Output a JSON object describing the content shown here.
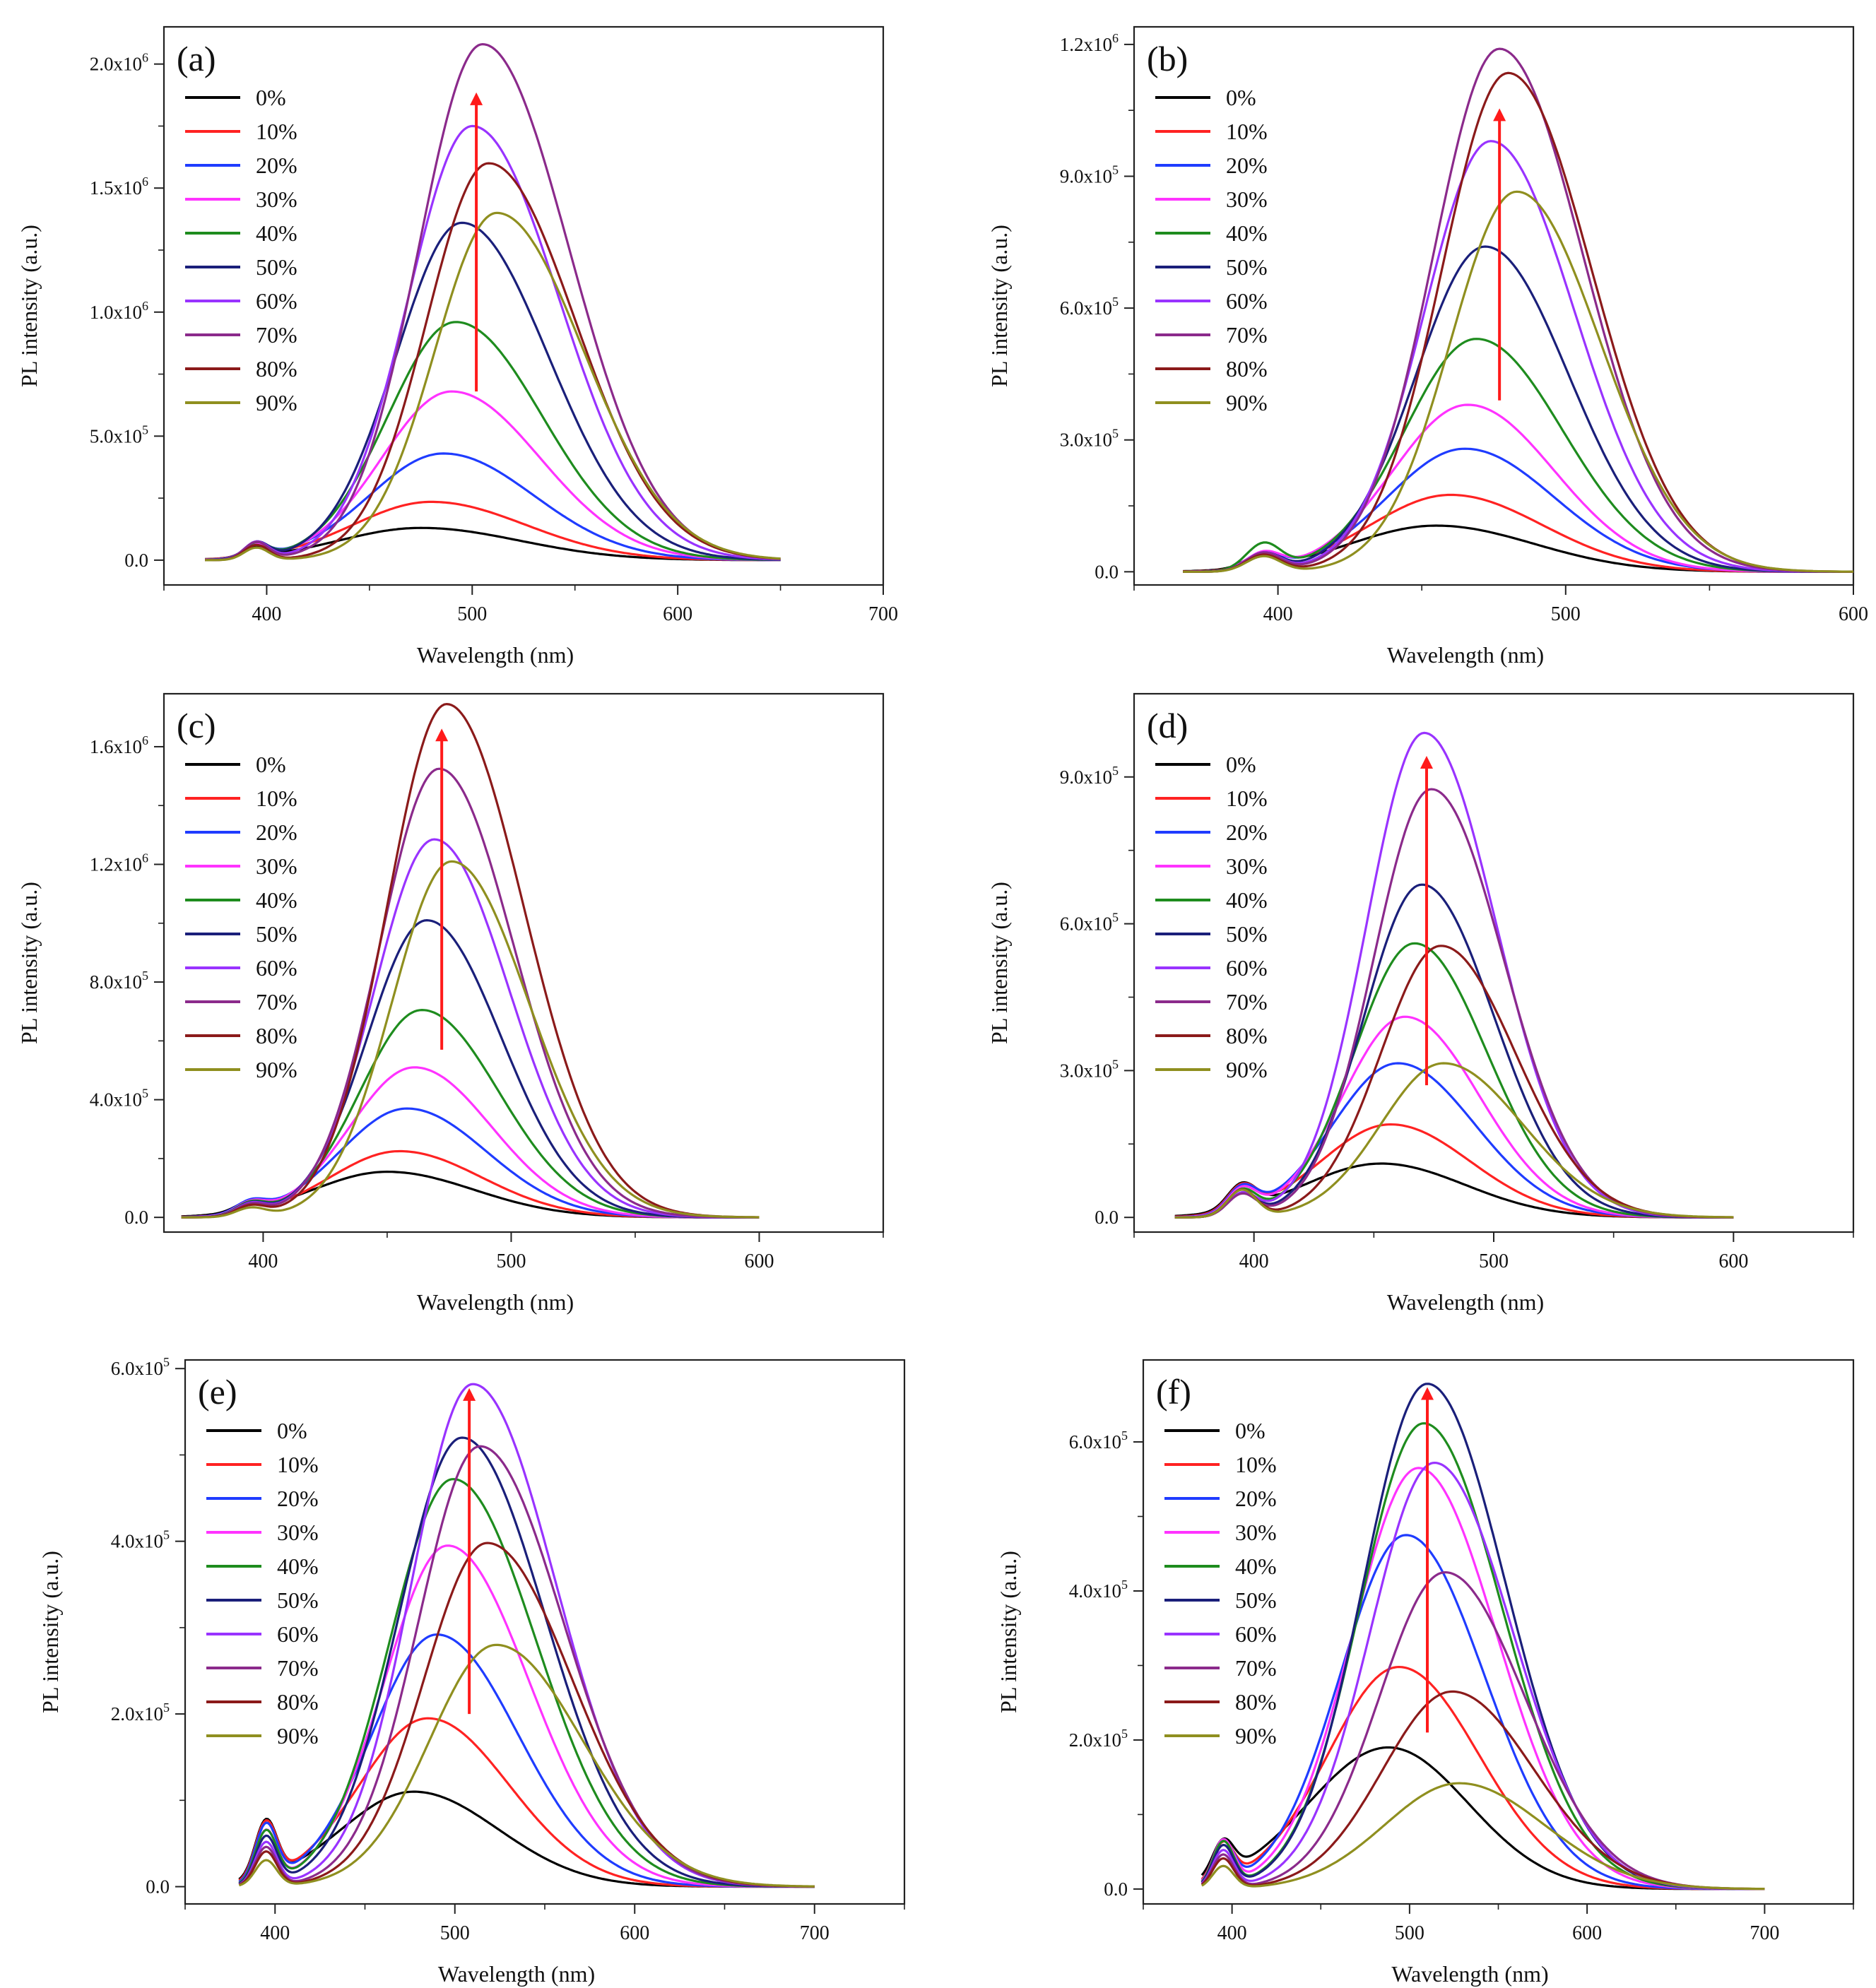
{
  "figure": {
    "common": {
      "xlabel": "Wavelength (nm)",
      "ylabel": "PL intensity (a.u.)",
      "legend_labels": [
        "0%",
        "10%",
        "20%",
        "30%",
        "40%",
        "50%",
        "60%",
        "70%",
        "80%",
        "90%"
      ],
      "series_colors": [
        "#000000",
        "#ff2222",
        "#1f3cff",
        "#ff33ff",
        "#1e8c1e",
        "#1a1f7a",
        "#9933ff",
        "#8b2a8b",
        "#8b1a1a",
        "#8f8f1f"
      ],
      "arrow_color": "#ff1a1a"
    }
  },
  "chart_data": [
    {
      "type": "line",
      "panel_label": "(a)",
      "xlim": [
        350,
        700
      ],
      "xticks": [
        400,
        500,
        600,
        700
      ],
      "ylim": [
        -100000,
        2150000
      ],
      "yticks": [
        0,
        500000,
        1000000,
        1500000,
        2000000
      ],
      "ytick_labels": [
        "0.0",
        "5.0x10^5",
        "1.0x10^6",
        "1.5x10^6",
        "2.0x10^6"
      ],
      "xrange": [
        370,
        650
      ],
      "arrow": {
        "x": 502,
        "y_from": 680000,
        "y_to": 1860000
      },
      "series": [
        {
          "name": "0%",
          "peak_nm": 475,
          "peak": 130000,
          "sigma_l": 40,
          "sigma_r": 48,
          "shoulder": 40000
        },
        {
          "name": "10%",
          "peak_nm": 480,
          "peak": 235000,
          "sigma_l": 38,
          "sigma_r": 46,
          "shoulder": 45000
        },
        {
          "name": "20%",
          "peak_nm": 486,
          "peak": 430000,
          "sigma_l": 36,
          "sigma_r": 44,
          "shoulder": 50000
        },
        {
          "name": "30%",
          "peak_nm": 490,
          "peak": 680000,
          "sigma_l": 34,
          "sigma_r": 43,
          "shoulder": 55000
        },
        {
          "name": "40%",
          "peak_nm": 492,
          "peak": 960000,
          "sigma_l": 33,
          "sigma_r": 42,
          "shoulder": 60000
        },
        {
          "name": "50%",
          "peak_nm": 495,
          "peak": 1360000,
          "sigma_l": 32,
          "sigma_r": 42,
          "shoulder": 65000
        },
        {
          "name": "60%",
          "peak_nm": 500,
          "peak": 1750000,
          "sigma_l": 31,
          "sigma_r": 42,
          "shoulder": 70000
        },
        {
          "name": "70%",
          "peak_nm": 505,
          "peak": 2080000,
          "sigma_l": 31,
          "sigma_r": 42,
          "shoulder": 70000
        },
        {
          "name": "80%",
          "peak_nm": 508,
          "peak": 1600000,
          "sigma_l": 30,
          "sigma_r": 42,
          "shoulder": 60000
        },
        {
          "name": "90%",
          "peak_nm": 512,
          "peak": 1400000,
          "sigma_l": 30,
          "sigma_r": 42,
          "shoulder": 50000
        }
      ]
    },
    {
      "type": "line",
      "panel_label": "(b)",
      "xlim": [
        350,
        600
      ],
      "xticks": [
        400,
        500,
        600
      ],
      "ylim": [
        -30000,
        1240000
      ],
      "yticks": [
        0,
        300000,
        600000,
        900000,
        1200000
      ],
      "ytick_labels": [
        "0.0",
        "3.0x10^5",
        "6.0x10^5",
        "9.0x10^5",
        "1.2x10^6"
      ],
      "xrange": [
        367,
        600
      ],
      "arrow": {
        "x": 477,
        "y_from": 390000,
        "y_to": 1040000
      },
      "series": [
        {
          "name": "0%",
          "peak_nm": 455,
          "peak": 105000,
          "sigma_l": 30,
          "sigma_r": 34,
          "shoulder": 30000
        },
        {
          "name": "10%",
          "peak_nm": 460,
          "peak": 175000,
          "sigma_l": 28,
          "sigma_r": 32,
          "shoulder": 32000
        },
        {
          "name": "20%",
          "peak_nm": 465,
          "peak": 280000,
          "sigma_l": 27,
          "sigma_r": 31,
          "shoulder": 35000
        },
        {
          "name": "30%",
          "peak_nm": 466,
          "peak": 380000,
          "sigma_l": 26,
          "sigma_r": 30,
          "shoulder": 38000
        },
        {
          "name": "40%",
          "peak_nm": 469,
          "peak": 530000,
          "sigma_l": 25,
          "sigma_r": 30,
          "shoulder": 60000
        },
        {
          "name": "50%",
          "peak_nm": 472,
          "peak": 740000,
          "sigma_l": 24,
          "sigma_r": 29,
          "shoulder": 40000
        },
        {
          "name": "60%",
          "peak_nm": 474,
          "peak": 980000,
          "sigma_l": 23,
          "sigma_r": 29,
          "shoulder": 42000
        },
        {
          "name": "70%",
          "peak_nm": 477,
          "peak": 1190000,
          "sigma_l": 23,
          "sigma_r": 29,
          "shoulder": 42000
        },
        {
          "name": "80%",
          "peak_nm": 480,
          "peak": 1135000,
          "sigma_l": 23,
          "sigma_r": 29,
          "shoulder": 38000
        },
        {
          "name": "90%",
          "peak_nm": 483,
          "peak": 865000,
          "sigma_l": 23,
          "sigma_r": 29,
          "shoulder": 35000
        }
      ]
    },
    {
      "type": "line",
      "panel_label": "(c)",
      "xlim": [
        360,
        650
      ],
      "xticks": [
        400,
        500,
        600
      ],
      "ylim": [
        -50000,
        1780000
      ],
      "yticks": [
        0,
        400000,
        800000,
        1200000,
        1600000
      ],
      "ytick_labels": [
        "0.0",
        "4.0x10^5",
        "8.0x10^5",
        "1.2x10^6",
        "1.6x10^6"
      ],
      "xrange": [
        367,
        600
      ],
      "arrow": {
        "x": 472,
        "y_from": 570000,
        "y_to": 1640000
      },
      "series": [
        {
          "name": "0%",
          "peak_nm": 450,
          "peak": 155000,
          "sigma_l": 30,
          "sigma_r": 35,
          "shoulder": 30000
        },
        {
          "name": "10%",
          "peak_nm": 455,
          "peak": 225000,
          "sigma_l": 28,
          "sigma_r": 33,
          "shoulder": 35000
        },
        {
          "name": "20%",
          "peak_nm": 458,
          "peak": 370000,
          "sigma_l": 27,
          "sigma_r": 32,
          "shoulder": 38000
        },
        {
          "name": "30%",
          "peak_nm": 461,
          "peak": 510000,
          "sigma_l": 26,
          "sigma_r": 31,
          "shoulder": 38000
        },
        {
          "name": "40%",
          "peak_nm": 464,
          "peak": 705000,
          "sigma_l": 25,
          "sigma_r": 31,
          "shoulder": 40000
        },
        {
          "name": "50%",
          "peak_nm": 466,
          "peak": 1010000,
          "sigma_l": 24,
          "sigma_r": 30,
          "shoulder": 40000
        },
        {
          "name": "60%",
          "peak_nm": 469,
          "peak": 1285000,
          "sigma_l": 24,
          "sigma_r": 30,
          "shoulder": 40000
        },
        {
          "name": "70%",
          "peak_nm": 471,
          "peak": 1525000,
          "sigma_l": 24,
          "sigma_r": 30,
          "shoulder": 38000
        },
        {
          "name": "80%",
          "peak_nm": 474,
          "peak": 1745000,
          "sigma_l": 24,
          "sigma_r": 31,
          "shoulder": 35000
        },
        {
          "name": "90%",
          "peak_nm": 476,
          "peak": 1210000,
          "sigma_l": 24,
          "sigma_r": 31,
          "shoulder": 30000
        }
      ]
    },
    {
      "type": "line",
      "panel_label": "(d)",
      "xlim": [
        350,
        650
      ],
      "xticks": [
        400,
        500,
        600
      ],
      "ylim": [
        -30000,
        1070000
      ],
      "yticks": [
        0,
        300000,
        600000,
        900000
      ],
      "ytick_labels": [
        "0.0",
        "3.0x10^5",
        "6.0x10^5",
        "9.0x10^5"
      ],
      "xrange": [
        367,
        600
      ],
      "arrow": {
        "x": 472,
        "y_from": 270000,
        "y_to": 930000
      },
      "series": [
        {
          "name": "0%",
          "peak_nm": 453,
          "peak": 110000,
          "sigma_l": 32,
          "sigma_r": 35,
          "shoulder": 50000
        },
        {
          "name": "10%",
          "peak_nm": 457,
          "peak": 190000,
          "sigma_l": 29,
          "sigma_r": 33,
          "shoulder": 50000
        },
        {
          "name": "20%",
          "peak_nm": 460,
          "peak": 315000,
          "sigma_l": 27,
          "sigma_r": 32,
          "shoulder": 50000
        },
        {
          "name": "30%",
          "peak_nm": 463,
          "peak": 410000,
          "sigma_l": 26,
          "sigma_r": 31,
          "shoulder": 50000
        },
        {
          "name": "40%",
          "peak_nm": 467,
          "peak": 560000,
          "sigma_l": 25,
          "sigma_r": 30,
          "shoulder": 50000
        },
        {
          "name": "50%",
          "peak_nm": 470,
          "peak": 680000,
          "sigma_l": 24,
          "sigma_r": 30,
          "shoulder": 45000
        },
        {
          "name": "60%",
          "peak_nm": 471,
          "peak": 990000,
          "sigma_l": 24,
          "sigma_r": 30,
          "shoulder": 45000
        },
        {
          "name": "70%",
          "peak_nm": 474,
          "peak": 875000,
          "sigma_l": 24,
          "sigma_r": 30,
          "shoulder": 45000
        },
        {
          "name": "80%",
          "peak_nm": 478,
          "peak": 555000,
          "sigma_l": 25,
          "sigma_r": 31,
          "shoulder": 55000
        },
        {
          "name": "90%",
          "peak_nm": 479,
          "peak": 315000,
          "sigma_l": 26,
          "sigma_r": 33,
          "shoulder": 55000
        }
      ]
    },
    {
      "type": "line",
      "panel_label": "(e)",
      "xlim": [
        350,
        750
      ],
      "xticks": [
        400,
        500,
        600,
        700
      ],
      "ylim": [
        -20000,
        610000
      ],
      "yticks": [
        0,
        200000,
        400000,
        600000
      ],
      "ytick_labels": [
        "0.0",
        "2.0x10^5",
        "4.0x10^5",
        "6.0x10^5"
      ],
      "xrange": [
        380,
        700
      ],
      "arrow": {
        "x": 508,
        "y_from": 200000,
        "y_to": 570000
      },
      "series": [
        {
          "name": "0%",
          "peak_nm": 477,
          "peak": 110000,
          "sigma_l": 40,
          "sigma_r": 47,
          "shoulder": 65000
        },
        {
          "name": "10%",
          "peak_nm": 485,
          "peak": 195000,
          "sigma_l": 38,
          "sigma_r": 45,
          "shoulder": 65000
        },
        {
          "name": "20%",
          "peak_nm": 490,
          "peak": 292000,
          "sigma_l": 36,
          "sigma_r": 45,
          "shoulder": 65000
        },
        {
          "name": "30%",
          "peak_nm": 496,
          "peak": 395000,
          "sigma_l": 35,
          "sigma_r": 45,
          "shoulder": 60000
        },
        {
          "name": "40%",
          "peak_nm": 499,
          "peak": 472000,
          "sigma_l": 35,
          "sigma_r": 46,
          "shoulder": 60000
        },
        {
          "name": "50%",
          "peak_nm": 504,
          "peak": 520000,
          "sigma_l": 35,
          "sigma_r": 46,
          "shoulder": 55000
        },
        {
          "name": "60%",
          "peak_nm": 510,
          "peak": 582000,
          "sigma_l": 34,
          "sigma_r": 46,
          "shoulder": 50000
        },
        {
          "name": "70%",
          "peak_nm": 514,
          "peak": 510000,
          "sigma_l": 34,
          "sigma_r": 46,
          "shoulder": 45000
        },
        {
          "name": "80%",
          "peak_nm": 518,
          "peak": 398000,
          "sigma_l": 35,
          "sigma_r": 47,
          "shoulder": 40000
        },
        {
          "name": "90%",
          "peak_nm": 523,
          "peak": 280000,
          "sigma_l": 37,
          "sigma_r": 48,
          "shoulder": 30000
        }
      ]
    },
    {
      "type": "line",
      "panel_label": "(f)",
      "xlim": [
        350,
        750
      ],
      "xticks": [
        400,
        500,
        600,
        700
      ],
      "ylim": [
        -20000,
        710000
      ],
      "yticks": [
        0,
        200000,
        400000,
        600000
      ],
      "ytick_labels": [
        "0.0",
        "2.0x10^5",
        "4.0x10^5",
        "6.0x10^5"
      ],
      "xrange": [
        383,
        700
      ],
      "arrow": {
        "x": 510,
        "y_from": 210000,
        "y_to": 665000
      },
      "series": [
        {
          "name": "0%",
          "peak_nm": 488,
          "peak": 190000,
          "sigma_l": 45,
          "sigma_r": 45,
          "shoulder": 45000
        },
        {
          "name": "10%",
          "peak_nm": 494,
          "peak": 298000,
          "sigma_l": 40,
          "sigma_r": 45,
          "shoulder": 50000
        },
        {
          "name": "20%",
          "peak_nm": 498,
          "peak": 475000,
          "sigma_l": 37,
          "sigma_r": 44,
          "shoulder": 55000
        },
        {
          "name": "30%",
          "peak_nm": 505,
          "peak": 565000,
          "sigma_l": 37,
          "sigma_r": 44,
          "shoulder": 60000
        },
        {
          "name": "40%",
          "peak_nm": 508,
          "peak": 625000,
          "sigma_l": 36,
          "sigma_r": 44,
          "shoulder": 60000
        },
        {
          "name": "50%",
          "peak_nm": 510,
          "peak": 678000,
          "sigma_l": 36,
          "sigma_r": 44,
          "shoulder": 55000
        },
        {
          "name": "60%",
          "peak_nm": 514,
          "peak": 572000,
          "sigma_l": 36,
          "sigma_r": 44,
          "shoulder": 50000
        },
        {
          "name": "70%",
          "peak_nm": 520,
          "peak": 425000,
          "sigma_l": 37,
          "sigma_r": 45,
          "shoulder": 45000
        },
        {
          "name": "80%",
          "peak_nm": 524,
          "peak": 265000,
          "sigma_l": 39,
          "sigma_r": 46,
          "shoulder": 40000
        },
        {
          "name": "90%",
          "peak_nm": 528,
          "peak": 142000,
          "sigma_l": 42,
          "sigma_r": 48,
          "shoulder": 30000
        }
      ]
    }
  ]
}
